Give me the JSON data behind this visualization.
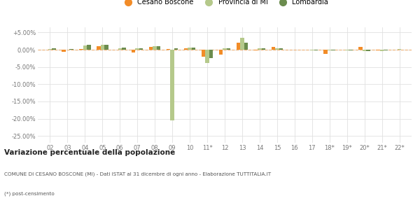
{
  "categories": [
    "02",
    "03",
    "04",
    "05",
    "06",
    "07",
    "08",
    "09",
    "10",
    "11*",
    "12",
    "13",
    "14",
    "15",
    "16",
    "17",
    "18*",
    "19*",
    "20*",
    "21*",
    "22*"
  ],
  "cesano": [
    0.0,
    -0.7,
    0.2,
    1.0,
    0.0,
    -0.8,
    0.8,
    0.3,
    0.4,
    -2.0,
    -1.5,
    2.0,
    -0.1,
    0.8,
    0.0,
    0.0,
    -1.3,
    0.0,
    0.9,
    -0.3,
    0.0
  ],
  "provincia": [
    0.3,
    0.0,
    1.3,
    1.5,
    0.5,
    0.4,
    1.0,
    -20.5,
    0.6,
    -3.8,
    0.4,
    3.5,
    0.5,
    0.5,
    0.0,
    -0.1,
    -0.1,
    -0.3,
    -0.5,
    -0.4,
    0.2
  ],
  "lombardia": [
    0.4,
    0.2,
    1.5,
    1.5,
    0.6,
    0.5,
    1.0,
    0.4,
    0.6,
    -2.5,
    0.4,
    2.0,
    0.5,
    0.4,
    0.1,
    -0.1,
    -0.1,
    -0.2,
    -0.4,
    -0.3,
    0.1
  ],
  "color_cesano": "#f28c28",
  "color_provincia": "#b5c98b",
  "color_lombardia": "#6b8c4e",
  "title": "Variazione percentuale della popolazione",
  "subtitle": "COMUNE DI CESANO BOSCONE (MI) - Dati ISTAT al 31 dicembre di ogni anno - Elaborazione TUTTITALIA.IT",
  "footnote": "(*) post-censimento",
  "ylim": [
    -27,
    6.5
  ],
  "yticks": [
    5,
    0,
    -5,
    -10,
    -15,
    -20,
    -25
  ],
  "bg_color": "#ffffff",
  "grid_color": "#e0e0e0"
}
